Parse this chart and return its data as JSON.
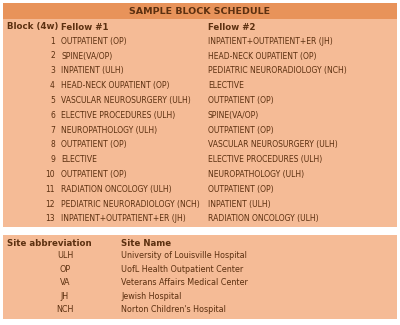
{
  "title": "SAMPLE BLOCK SCHEDULE",
  "header_bg": "#E8935A",
  "table_bg": "#F5BB96",
  "text_color": "#5C3010",
  "col_headers": [
    "Block (4w)",
    "Fellow #1",
    "Fellow #2"
  ],
  "rows": [
    [
      "1",
      "OUTPATIENT (OP)",
      "INPATIENT+OUTPATIENT+ER (JH)"
    ],
    [
      "2",
      "SPINE(VA/OP)",
      "HEAD-NECK OUPATIENT (OP)"
    ],
    [
      "3",
      "INPATIENT (ULH)",
      "PEDIATRIC NEURORADIOLOGY (NCH)"
    ],
    [
      "4",
      "HEAD-NECK OUPATIENT (OP)",
      "ELECTIVE"
    ],
    [
      "5",
      "VASCULAR NEUROSURGERY (ULH)",
      "OUTPATIENT (OP)"
    ],
    [
      "6",
      "ELECTIVE PROCEDURES (ULH)",
      "SPINE(VA/OP)"
    ],
    [
      "7",
      "NEUROPATHOLOGY (ULH)",
      "OUTPATIENT (OP)"
    ],
    [
      "8",
      "OUTPATIENT (OP)",
      "VASCULAR NEUROSURGERY (ULH)"
    ],
    [
      "9",
      "ELECTIVE",
      "ELECTIVE PROCEDURES (ULH)"
    ],
    [
      "10",
      "OUTPATIENT (OP)",
      "NEUROPATHOLOGY (ULH)"
    ],
    [
      "11",
      "RADIATION ONCOLOGY (ULH)",
      "OUTPATIENT (OP)"
    ],
    [
      "12",
      "PEDIATRIC NEURORADIOLOGY (NCH)",
      "INPATIENT (ULH)"
    ],
    [
      "13",
      "INPATIENT+OUTPATIENT+ER (JH)",
      "RADIATION ONCOLOGY (ULH)"
    ]
  ],
  "abbrev_headers": [
    "Site abbreviation",
    "Site Name"
  ],
  "abbrev_rows": [
    [
      "ULH",
      "University of Louisville Hospital"
    ],
    [
      "OP",
      "UofL Health Outpatient Center"
    ],
    [
      "VA",
      "Veterans Affairs Medical Center"
    ],
    [
      "JH",
      "Jewish Hospital"
    ],
    [
      "NCH",
      "Norton Children's Hospital"
    ]
  ],
  "title_fontsize": 6.8,
  "header_fontsize": 6.2,
  "data_fontsize": 5.5,
  "abbrev_data_fontsize": 5.8,
  "fig_width": 4.0,
  "fig_height": 3.25,
  "dpi": 100
}
